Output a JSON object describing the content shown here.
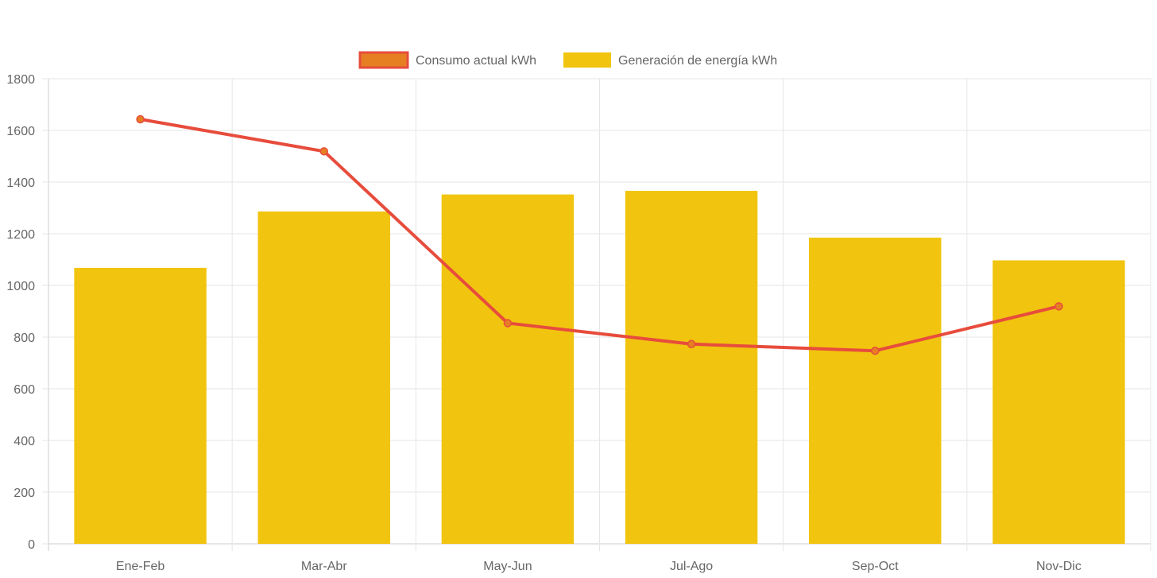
{
  "chart_data": {
    "type": "bar",
    "categories": [
      "Ene-Feb",
      "Mar-Abr",
      "May-Jun",
      "Jul-Ago",
      "Sep-Oct",
      "Nov-Dic"
    ],
    "series": [
      {
        "name": "Consumo actual kWh",
        "type": "line",
        "values": [
          1643,
          1519,
          854,
          773,
          747,
          919
        ],
        "color": "#e74c3c",
        "fill_color": "#e67e22"
      },
      {
        "name": "Generación de energía kWh",
        "type": "bar",
        "values": [
          1068,
          1286,
          1352,
          1366,
          1185,
          1097
        ],
        "color": "#f1c40f"
      }
    ],
    "ylim": [
      0,
      1800
    ],
    "yticks": [
      0,
      200,
      400,
      600,
      800,
      1000,
      1200,
      1400,
      1600,
      1800
    ],
    "grid": true,
    "legend_position": "top"
  }
}
